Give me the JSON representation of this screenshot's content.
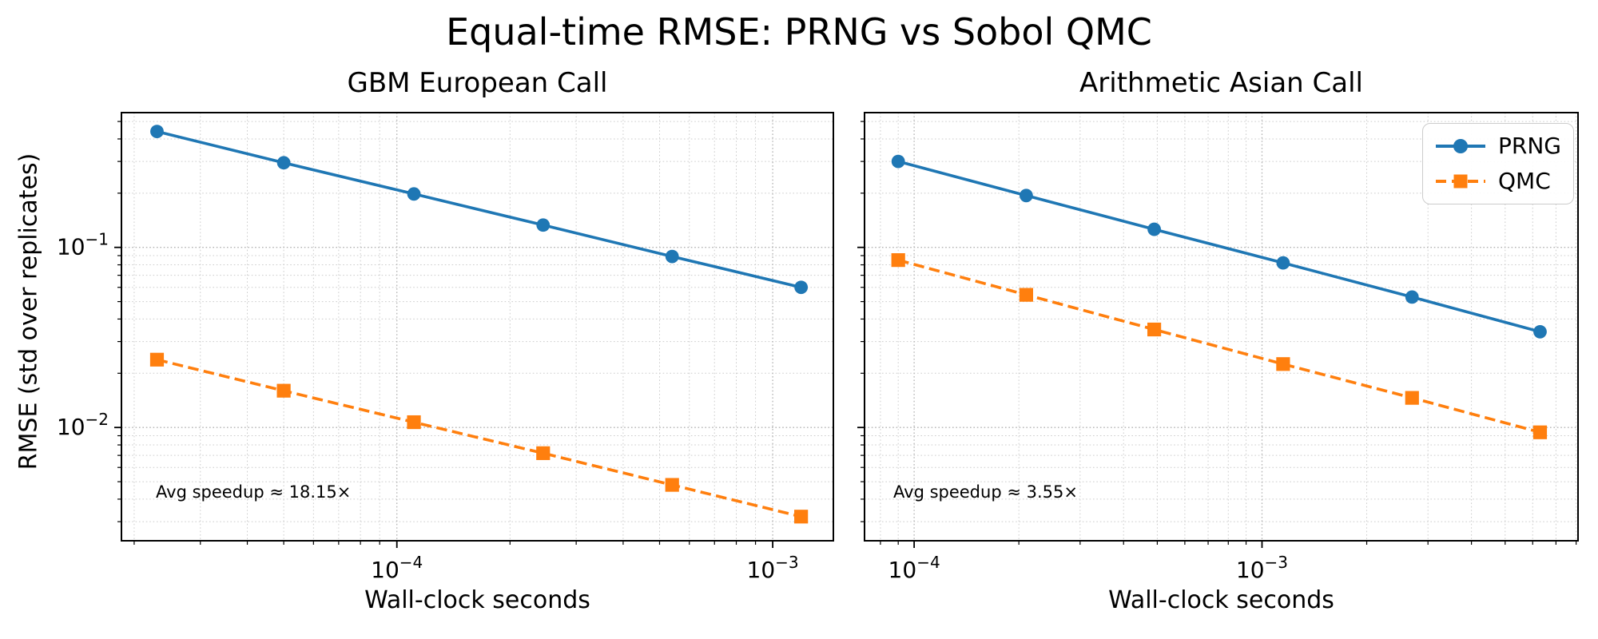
{
  "figure": {
    "title": "Equal-time RMSE: PRNG vs Sobol QMC",
    "background": "#ffffff"
  },
  "colors": {
    "prng": "#1f77b4",
    "qmc": "#ff7f0e",
    "grid_major": "#b3b3b3",
    "grid_minor": "#cccccc",
    "spine": "#000000",
    "text": "#000000",
    "legend_border": "#cccccc"
  },
  "legend": {
    "position": "upper right of right subplot",
    "entries": [
      {
        "label": "PRNG",
        "series": "prng",
        "marker": "circle",
        "line": "solid"
      },
      {
        "label": "QMC",
        "series": "qmc",
        "marker": "square",
        "line": "dashed"
      }
    ]
  },
  "chart_data": [
    {
      "type": "line",
      "title": "GBM European Call",
      "xlabel": "Wall-clock seconds",
      "ylabel": "RMSE (std over replicates)",
      "xscale": "log",
      "yscale": "log",
      "xlim": [
        1.85e-05,
        0.00145
      ],
      "ylim": [
        0.00235,
        0.56
      ],
      "grid": "both, dotted",
      "x_ticks": [
        {
          "value": 0.0001,
          "base": "10",
          "exp": "−4"
        },
        {
          "value": 0.001,
          "base": "10",
          "exp": "−3"
        }
      ],
      "y_ticks": [
        {
          "value": 0.1,
          "base": "10",
          "exp": "−1"
        },
        {
          "value": 0.01,
          "base": "10",
          "exp": "−2"
        }
      ],
      "show_y_tick_labels": true,
      "annotation": "Avg speedup ≈ 18.15×",
      "series": [
        {
          "name": "PRNG",
          "color_key": "prng",
          "line": "solid",
          "marker": "circle",
          "x": [
            2.3e-05,
            5e-05,
            0.000111,
            0.000245,
            0.00054,
            0.00119
          ],
          "y": [
            0.44,
            0.295,
            0.198,
            0.133,
            0.089,
            0.06
          ]
        },
        {
          "name": "QMC",
          "color_key": "qmc",
          "line": "dashed",
          "marker": "square",
          "x": [
            2.3e-05,
            5e-05,
            0.000111,
            0.000245,
            0.00054,
            0.00119
          ],
          "y": [
            0.0238,
            0.016,
            0.0107,
            0.0072,
            0.0048,
            0.0032
          ]
        }
      ]
    },
    {
      "type": "line",
      "title": "Arithmetic Asian Call",
      "xlabel": "Wall-clock seconds",
      "ylabel": "",
      "xscale": "log",
      "yscale": "log",
      "xlim": [
        7.2e-05,
        0.0081
      ],
      "ylim": [
        0.00235,
        0.56
      ],
      "grid": "both, dotted",
      "x_ticks": [
        {
          "value": 0.0001,
          "base": "10",
          "exp": "−4"
        },
        {
          "value": 0.001,
          "base": "10",
          "exp": "−3"
        }
      ],
      "y_ticks": [
        {
          "value": 0.1,
          "base": "10",
          "exp": "−1"
        },
        {
          "value": 0.01,
          "base": "10",
          "exp": "−2"
        }
      ],
      "show_y_tick_labels": false,
      "annotation": "Avg speedup ≈ 3.55×",
      "series": [
        {
          "name": "PRNG",
          "color_key": "prng",
          "line": "solid",
          "marker": "circle",
          "x": [
            9e-05,
            0.00021,
            0.00049,
            0.00115,
            0.0027,
            0.0063
          ],
          "y": [
            0.3,
            0.194,
            0.126,
            0.082,
            0.053,
            0.034
          ]
        },
        {
          "name": "QMC",
          "color_key": "qmc",
          "line": "dashed",
          "marker": "square",
          "x": [
            9e-05,
            0.00021,
            0.00049,
            0.00115,
            0.0027,
            0.0063
          ],
          "y": [
            0.085,
            0.0545,
            0.035,
            0.0225,
            0.0146,
            0.0094
          ]
        }
      ]
    }
  ]
}
